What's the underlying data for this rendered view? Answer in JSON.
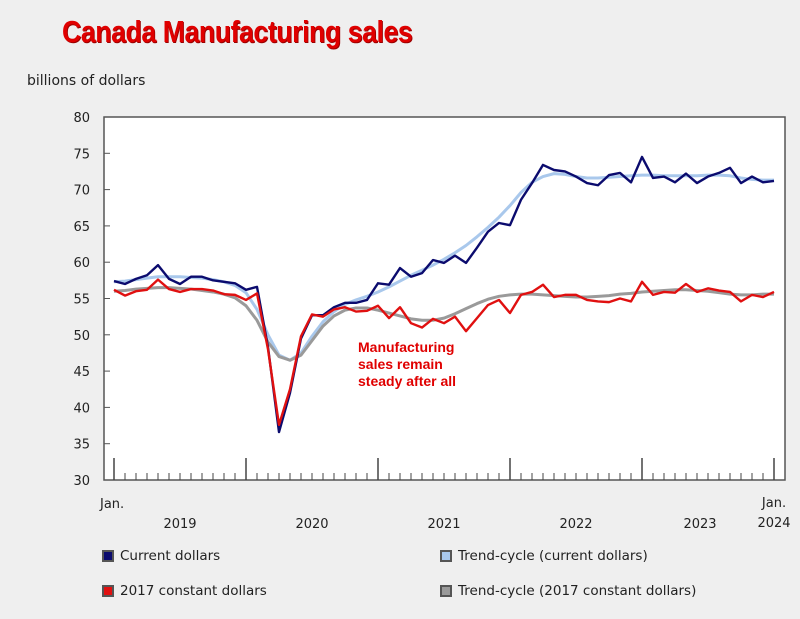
{
  "chart_data": {
    "type": "line",
    "title": "Canada Manufacturing sales",
    "ylabel": "billions of dollars",
    "ylim": [
      30,
      80
    ],
    "yticks": [
      30,
      35,
      40,
      45,
      50,
      55,
      60,
      65,
      70,
      75,
      80
    ],
    "x_start": "Jan. 2019",
    "x_end": "Jan. 2024",
    "x_edge_labels": {
      "start": "Jan.",
      "end": "Jan."
    },
    "year_labels": [
      "2019",
      "2020",
      "2021",
      "2022",
      "2023",
      "2024"
    ],
    "grid": false,
    "legend_position": "bottom",
    "annotation": "Manufacturing sales remain steady after all",
    "series": [
      {
        "name": "Current dollars",
        "color": "#0b0b6e",
        "values": [
          57.4,
          57.0,
          57.7,
          58.2,
          59.6,
          57.7,
          57.0,
          58.0,
          58.0,
          57.5,
          57.3,
          57.1,
          56.2,
          56.6,
          48.3,
          36.6,
          42.0,
          49.5,
          52.7,
          52.7,
          53.8,
          54.4,
          54.4,
          54.8,
          57.1,
          56.9,
          59.2,
          58.0,
          58.5,
          60.3,
          59.9,
          60.9,
          59.9,
          62.0,
          64.2,
          65.4,
          65.1,
          68.6,
          70.9,
          73.4,
          72.7,
          72.5,
          71.8,
          70.9,
          70.6,
          72.0,
          72.3,
          71.0,
          74.5,
          71.6,
          71.8,
          71.0,
          72.2,
          70.9,
          71.8,
          72.3,
          73.0,
          70.9,
          71.8,
          71.0,
          71.2
        ]
      },
      {
        "name": "Trend-cycle (current dollars)",
        "color": "#a9c8ec",
        "values": [
          57.3,
          57.4,
          57.6,
          57.8,
          58.0,
          58.0,
          58.0,
          57.9,
          57.8,
          57.6,
          57.3,
          56.8,
          55.8,
          53.5,
          50.0,
          47.2,
          46.5,
          47.5,
          49.8,
          51.8,
          53.2,
          54.2,
          54.8,
          55.3,
          55.9,
          56.6,
          57.4,
          58.2,
          58.9,
          59.6,
          60.4,
          61.3,
          62.3,
          63.5,
          64.8,
          66.2,
          67.8,
          69.6,
          71.0,
          71.8,
          72.2,
          72.1,
          71.8,
          71.6,
          71.6,
          71.7,
          71.8,
          71.9,
          72.0,
          72.0,
          71.9,
          71.9,
          71.9,
          71.9,
          72.0,
          72.0,
          71.9,
          71.6,
          71.4,
          71.3,
          71.3
        ]
      },
      {
        "name": "2017 constant dollars",
        "color": "#e01010",
        "values": [
          56.2,
          55.4,
          56.0,
          56.2,
          57.6,
          56.3,
          55.9,
          56.3,
          56.3,
          56.1,
          55.6,
          55.5,
          54.8,
          55.7,
          48.0,
          37.6,
          42.5,
          49.8,
          52.8,
          52.5,
          53.5,
          53.8,
          53.2,
          53.3,
          54.0,
          52.3,
          53.8,
          51.6,
          51.0,
          52.2,
          51.6,
          52.5,
          50.5,
          52.3,
          54.1,
          54.8,
          53.0,
          55.5,
          55.9,
          56.9,
          55.2,
          55.5,
          55.5,
          54.8,
          54.6,
          54.5,
          55.0,
          54.6,
          57.3,
          55.5,
          55.9,
          55.8,
          57.0,
          55.9,
          56.4,
          56.1,
          55.9,
          54.6,
          55.5,
          55.2,
          55.9
        ]
      },
      {
        "name": "Trend-cycle (2017 constant dollars)",
        "color": "#9a9a9a",
        "values": [
          56.0,
          56.1,
          56.3,
          56.4,
          56.5,
          56.5,
          56.4,
          56.3,
          56.1,
          55.9,
          55.6,
          55.1,
          54.0,
          52.0,
          49.0,
          47.0,
          46.5,
          47.2,
          49.2,
          51.2,
          52.6,
          53.4,
          53.7,
          53.7,
          53.4,
          53.0,
          52.6,
          52.2,
          52.0,
          52.0,
          52.3,
          52.9,
          53.6,
          54.3,
          54.9,
          55.3,
          55.5,
          55.6,
          55.6,
          55.5,
          55.4,
          55.3,
          55.2,
          55.2,
          55.3,
          55.4,
          55.6,
          55.7,
          55.9,
          56.0,
          56.1,
          56.2,
          56.2,
          56.1,
          56.0,
          55.8,
          55.6,
          55.5,
          55.5,
          55.6,
          55.6
        ]
      }
    ]
  }
}
